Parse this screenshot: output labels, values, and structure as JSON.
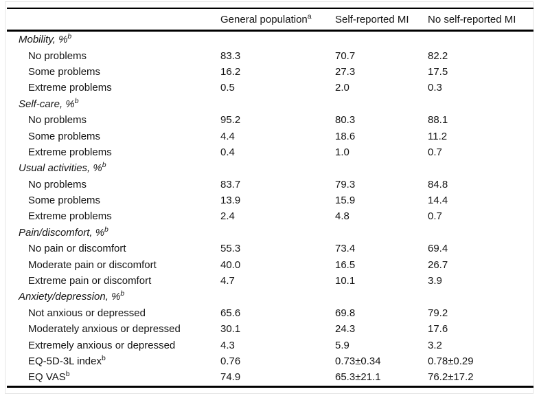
{
  "page": {
    "background": "#ffffff",
    "text_color": "#141414",
    "rule_color": "#000000",
    "frame_color": "#e4e4e4"
  },
  "table": {
    "header": {
      "label_col": "",
      "columns": [
        {
          "label": "General population",
          "sup": "a"
        },
        {
          "label": "Self-reported MI",
          "sup": ""
        },
        {
          "label": "No self-reported MI",
          "sup": ""
        }
      ]
    },
    "rows": [
      {
        "type": "section",
        "label": "Mobility, %",
        "sup": "b",
        "values": [
          "",
          "",
          ""
        ]
      },
      {
        "type": "item",
        "label": "No problems",
        "sup": "",
        "values": [
          "83.3",
          "70.7",
          "82.2"
        ]
      },
      {
        "type": "item",
        "label": "Some problems",
        "sup": "",
        "values": [
          "16.2",
          "27.3",
          "17.5"
        ]
      },
      {
        "type": "item",
        "label": "Extreme problems",
        "sup": "",
        "values": [
          "0.5",
          "2.0",
          "0.3"
        ]
      },
      {
        "type": "section",
        "label": "Self-care, %",
        "sup": "b",
        "values": [
          "",
          "",
          ""
        ]
      },
      {
        "type": "item",
        "label": "No problems",
        "sup": "",
        "values": [
          "95.2",
          "80.3",
          "88.1"
        ]
      },
      {
        "type": "item",
        "label": "Some problems",
        "sup": "",
        "values": [
          "4.4",
          "18.6",
          "11.2"
        ]
      },
      {
        "type": "item",
        "label": "Extreme problems",
        "sup": "",
        "values": [
          "0.4",
          "1.0",
          "0.7"
        ]
      },
      {
        "type": "section",
        "label": "Usual activities, %",
        "sup": "b",
        "values": [
          "",
          "",
          ""
        ]
      },
      {
        "type": "item",
        "label": "No problems",
        "sup": "",
        "values": [
          "83.7",
          "79.3",
          "84.8"
        ]
      },
      {
        "type": "item",
        "label": "Some problems",
        "sup": "",
        "values": [
          "13.9",
          "15.9",
          "14.4"
        ]
      },
      {
        "type": "item",
        "label": "Extreme problems",
        "sup": "",
        "values": [
          "2.4",
          "4.8",
          "0.7"
        ]
      },
      {
        "type": "section",
        "label": "Pain/discomfort, %",
        "sup": "b",
        "values": [
          "",
          "",
          ""
        ]
      },
      {
        "type": "item",
        "label": "No pain or discomfort",
        "sup": "",
        "values": [
          "55.3",
          "73.4",
          "69.4"
        ]
      },
      {
        "type": "item",
        "label": "Moderate pain or discomfort",
        "sup": "",
        "values": [
          "40.0",
          "16.5",
          "26.7"
        ]
      },
      {
        "type": "item",
        "label": "Extreme pain or discomfort",
        "sup": "",
        "values": [
          "4.7",
          "10.1",
          "3.9"
        ]
      },
      {
        "type": "section",
        "label": "Anxiety/depression, %",
        "sup": "b",
        "values": [
          "",
          "",
          ""
        ]
      },
      {
        "type": "item",
        "label": "Not anxious or depressed",
        "sup": "",
        "values": [
          "65.6",
          "69.8",
          "79.2"
        ]
      },
      {
        "type": "item",
        "label": "Moderately anxious or depressed",
        "sup": "",
        "values": [
          "30.1",
          "24.3",
          "17.6"
        ]
      },
      {
        "type": "item",
        "label": "Extremely anxious or depressed",
        "sup": "",
        "values": [
          "4.3",
          "5.9",
          "3.2"
        ]
      },
      {
        "type": "item",
        "label": "EQ-5D-3L index",
        "sup": "b",
        "values": [
          "0.76",
          "0.73±0.34",
          "0.78±0.29"
        ]
      },
      {
        "type": "item",
        "label": "EQ VAS",
        "sup": "b",
        "values": [
          "74.9",
          "65.3±21.1",
          "76.2±17.2"
        ]
      }
    ]
  }
}
